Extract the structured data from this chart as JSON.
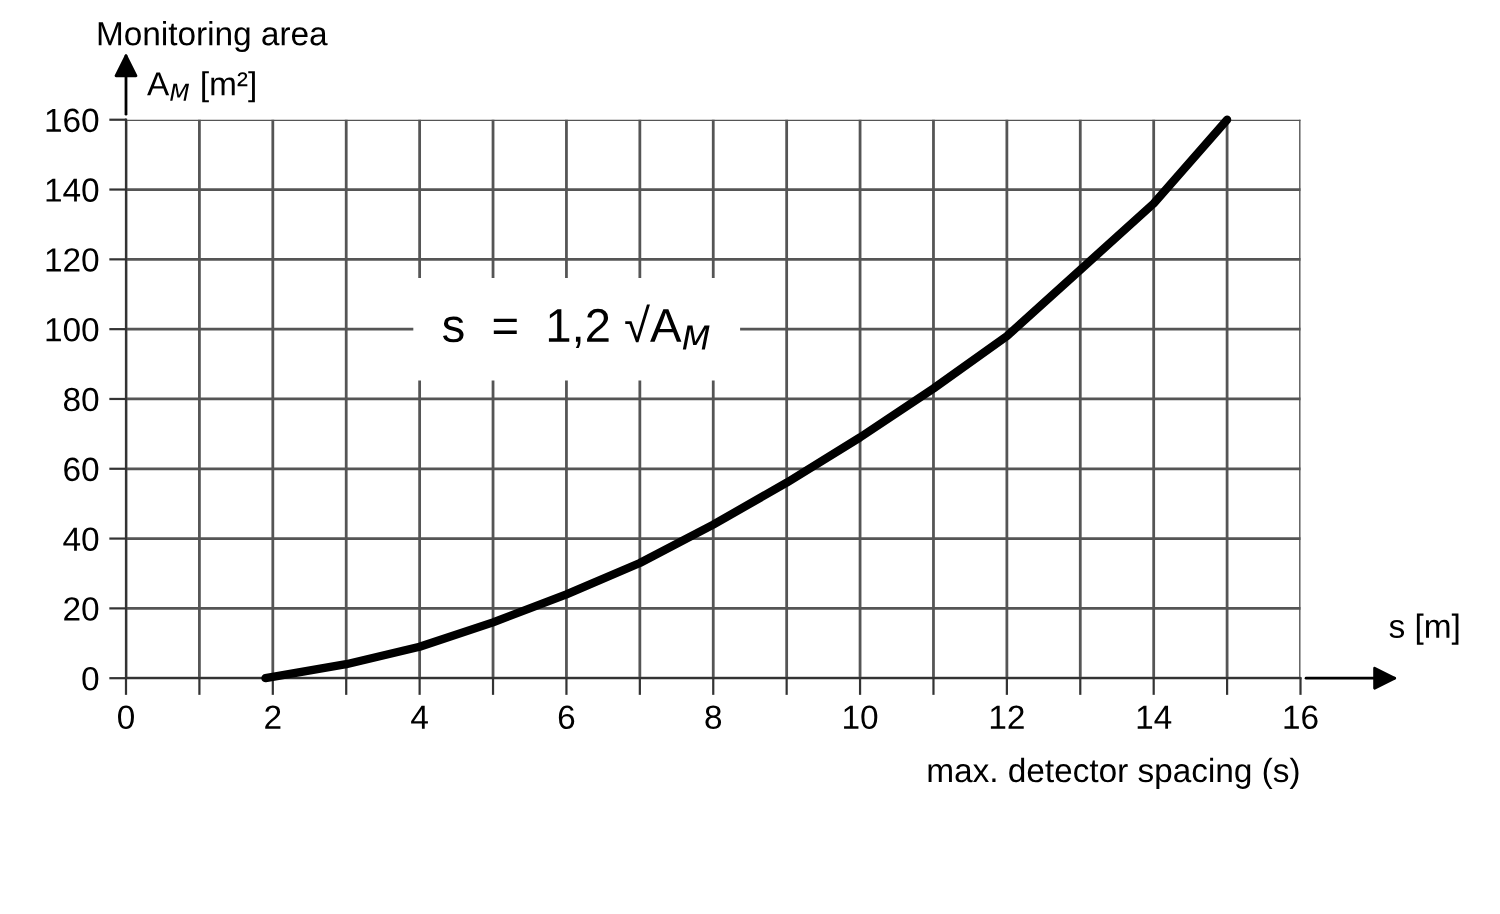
{
  "chart_data": {
    "type": "line",
    "xlabel": "max. detector spacing (s)",
    "ylabel": "Monitoring area",
    "annotations": [
      "A$_{M}$ [m²]",
      "s [m]",
      "s  =  1,2 √A$_{M}$"
    ],
    "x": [
      1.9,
      3,
      4,
      5,
      6,
      7,
      8,
      9,
      10,
      11,
      12,
      13,
      14,
      15
    ],
    "series": [
      {
        "color": "#000000",
        "values": [
          0,
          4,
          9,
          16,
          24,
          33,
          44,
          56,
          69,
          83,
          98,
          117,
          136,
          160
        ]
      }
    ],
    "xlim": [
      0,
      16
    ],
    "ylim": [
      0,
      160
    ],
    "xticks": [
      0,
      {
        "value": 1,
        "label": null
      },
      2,
      {
        "value": 3,
        "label": null
      },
      4,
      {
        "value": 5,
        "label": null
      },
      6,
      {
        "value": 7,
        "label": null
      },
      8,
      {
        "value": 9,
        "label": null
      },
      10,
      {
        "value": 11,
        "label": null
      },
      12,
      {
        "value": 13,
        "label": null
      },
      14,
      {
        "value": 15,
        "label": null
      },
      16
    ],
    "yticks": [
      0,
      20,
      40,
      60,
      80,
      100,
      120,
      140,
      160
    ],
    "grid": true,
    "legend": false,
    "marker": "none",
    "line_style": "solid"
  }
}
